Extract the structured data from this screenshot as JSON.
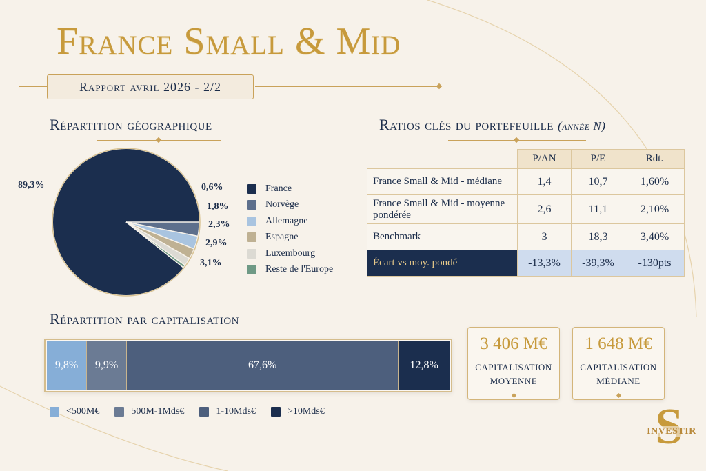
{
  "header": {
    "title": "France Small & Mid",
    "report": "Rapport avril 2026 - 2/2"
  },
  "geo": {
    "title": "Répartition géographique"
  },
  "ratios": {
    "title": "Ratios clés du portefeuille",
    "subtitle": "(année N)",
    "columns": [
      "P/AN",
      "P/E",
      "Rdt."
    ],
    "rows": [
      {
        "label": "France Small & Mid - médiane",
        "values": [
          "1,4",
          "10,7",
          "1,60%"
        ]
      },
      {
        "label": "France Small & Mid - moyenne pondérée",
        "values": [
          "2,6",
          "11,1",
          "2,10%"
        ]
      },
      {
        "label": "Benchmark",
        "values": [
          "3",
          "18,3",
          "3,40%"
        ]
      },
      {
        "label": "Écart vs moy. pondé",
        "values": [
          "-13,3%",
          "-39,3%",
          "-130pts"
        ]
      }
    ]
  },
  "cap": {
    "title": "Répartition par capitalisation"
  },
  "kpis": [
    {
      "value": "3 406 M€",
      "label_line1": "CAPITALISATION",
      "label_line2": "MOYENNE"
    },
    {
      "value": "1 648 M€",
      "label_line1": "CAPITALISATION",
      "label_line2": "MÉDIANE"
    }
  ],
  "logo": {
    "text": "INVESTIR"
  },
  "colors": {
    "navy": "#1b2e4e",
    "gold": "#c79a3c"
  },
  "chart_data": [
    {
      "type": "pie",
      "title": "Répartition géographique",
      "categories": [
        "France",
        "Norvège",
        "Allemagne",
        "Espagne",
        "Luxembourg",
        "Reste de l'Europe"
      ],
      "values": [
        89.3,
        3.1,
        2.9,
        2.3,
        1.8,
        0.6
      ],
      "value_labels": [
        "89,3%",
        "3,1%",
        "2,9%",
        "2,3%",
        "1,8%",
        "0,6%"
      ],
      "colors": [
        "#1b2e4e",
        "#5d6f8c",
        "#a9c4e0",
        "#bfb193",
        "#dcdad3",
        "#6f9a86"
      ],
      "legend_position": "right"
    },
    {
      "type": "bar",
      "orientation": "horizontal-stacked",
      "title": "Répartition par capitalisation",
      "categories": [
        "<500M€",
        "500M-1Mds€",
        "1-10Mds€",
        ">10Mds€"
      ],
      "values": [
        9.8,
        9.9,
        67.6,
        12.8
      ],
      "value_labels": [
        "9,8%",
        "9,9%",
        "67,6%",
        "12,8%"
      ],
      "colors": [
        "#86aed7",
        "#6b7b94",
        "#4d5f7d",
        "#1b2e4e"
      ],
      "legend_position": "bottom"
    }
  ]
}
